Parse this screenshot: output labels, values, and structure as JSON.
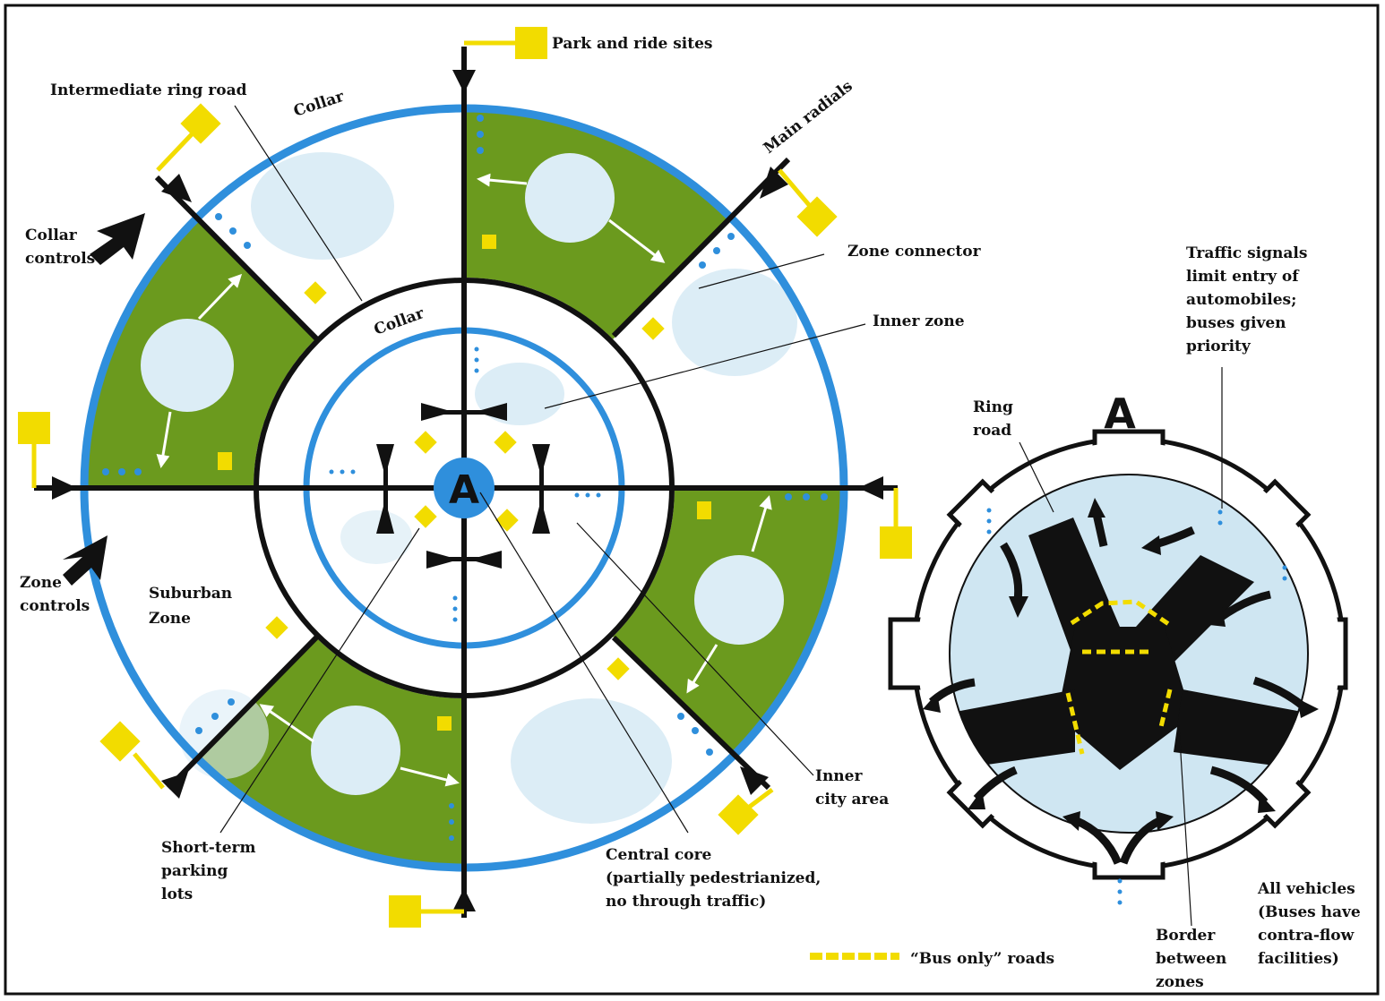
{
  "labels": {
    "park_and_ride": "Park and ride sites",
    "intermediate_ring": "Intermediate ring road",
    "collar_outer": "Collar",
    "main_radials": "Main radials",
    "collar_controls": [
      "Collar",
      "controls"
    ],
    "zone_connector": "Zone connector",
    "collar_inner": "Collar",
    "inner_zone": "Inner zone",
    "zone_controls": [
      "Zone",
      "controls"
    ],
    "suburban_zone": [
      "Suburban",
      "Zone"
    ],
    "short_term_parking": [
      "Short-term",
      "parking",
      "lots"
    ],
    "central_core": [
      "Central core",
      "(partially pedestrianized,",
      "no through traffic)"
    ],
    "inner_city_area": [
      "Inner",
      "city area"
    ],
    "core_letter": "A",
    "detail_letter": "A",
    "ring_road": [
      "Ring",
      "road"
    ],
    "traffic_signals": [
      "Traffic signals",
      "limit entry of",
      "automobiles;",
      "buses given",
      "priority"
    ],
    "border_between_zones": [
      "Border",
      "between",
      "zones"
    ],
    "all_vehicles": [
      "All vehicles",
      "(Buses have",
      "contra-flow",
      "facilities)"
    ],
    "bus_only_roads": "“Bus only” roads"
  },
  "colors": {
    "collar_blue": "#2f8fdc",
    "green_zone": "#6b9a1e",
    "light_blue": "#cfe6f2",
    "yellow": "#f2dc00",
    "black": "#111111"
  }
}
